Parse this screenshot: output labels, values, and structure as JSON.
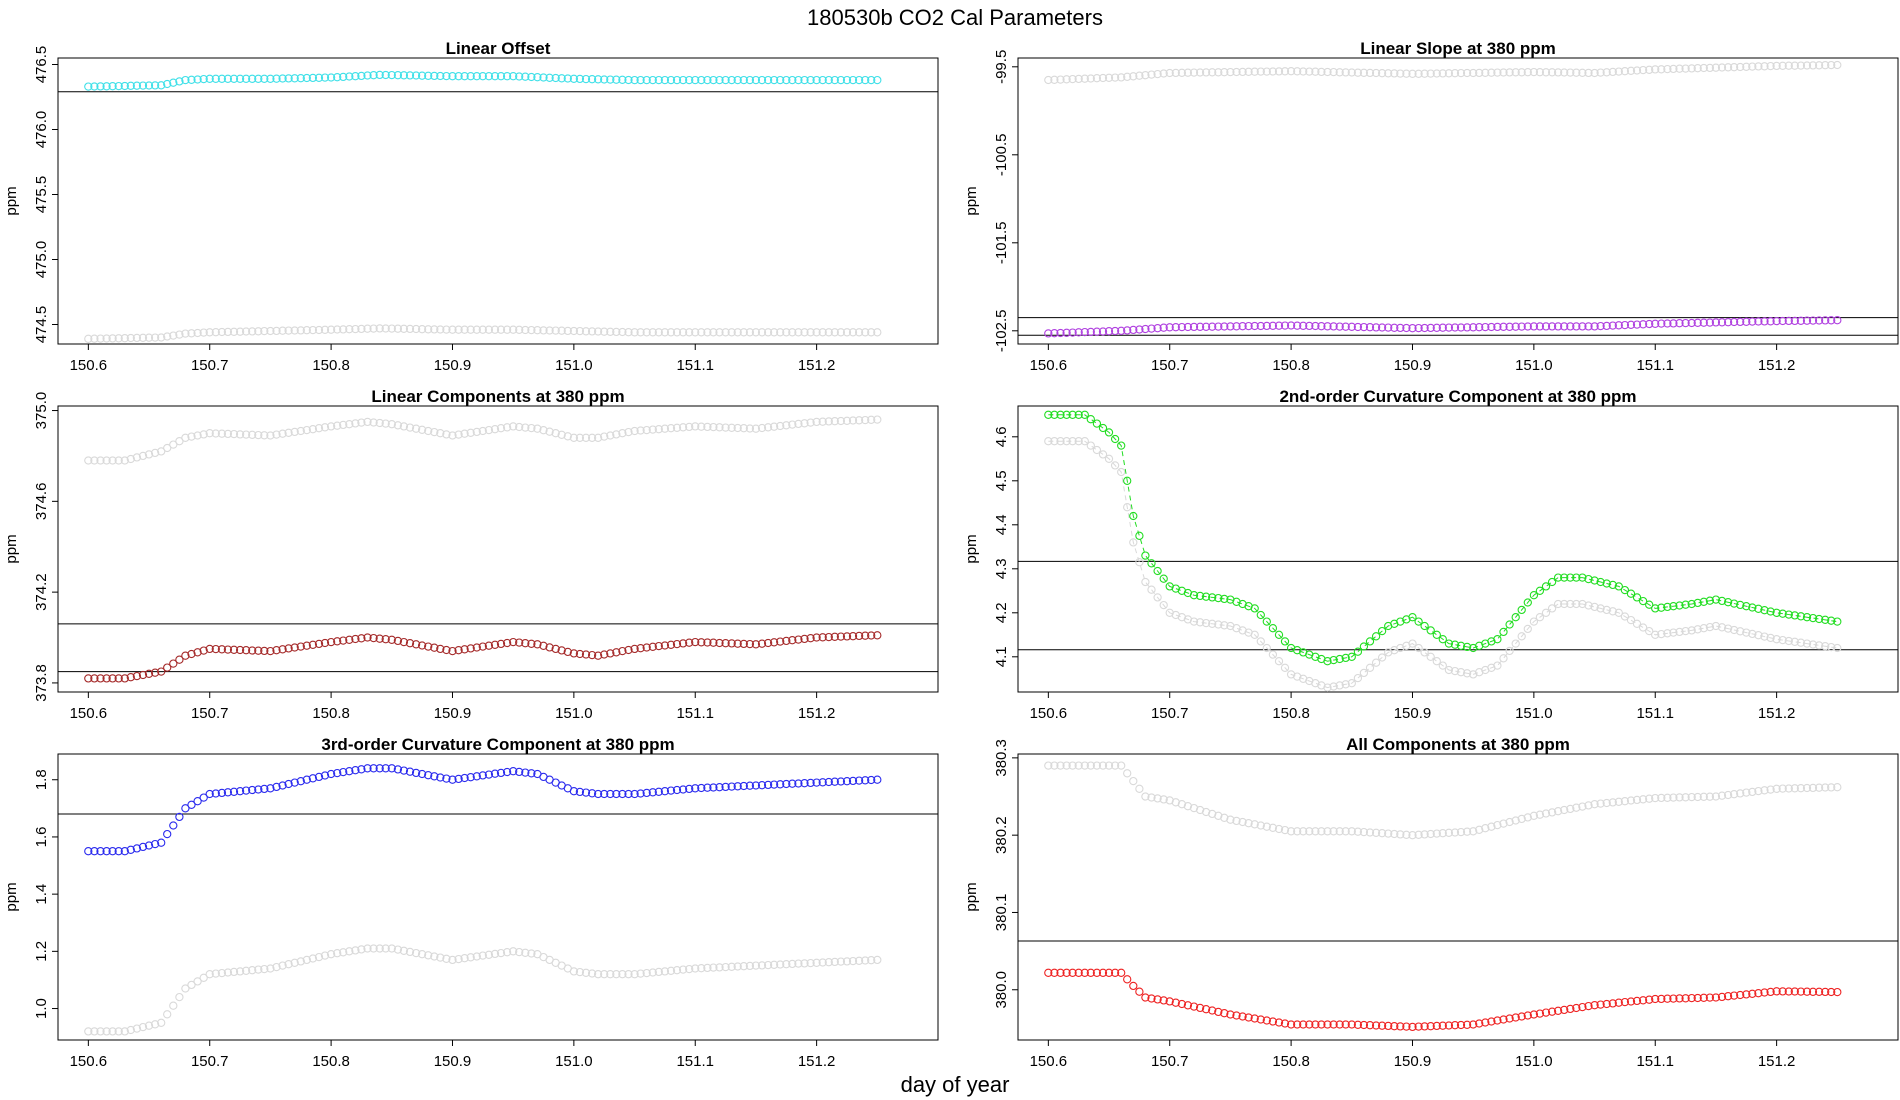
{
  "figure": {
    "title": "180530b   CO2 Cal Parameters",
    "xlabel": "day of year"
  },
  "chart_data": [
    {
      "type": "scatter",
      "title": "Linear Offset",
      "ylabel": "ppm",
      "xlim": [
        150.575,
        151.3
      ],
      "ylim": [
        474.35,
        476.55
      ],
      "xticks": [
        "150.6",
        "150.7",
        "150.8",
        "150.9",
        "151.0",
        "151.1",
        "151.2"
      ],
      "yticks": [
        "474.5",
        "475.0",
        "475.5",
        "476.0",
        "476.5"
      ],
      "hlines": [
        476.29
      ],
      "series": [
        {
          "color": "#3fe0e8",
          "points": [
            [
              150.6,
              476.33
            ],
            [
              150.66,
              476.34
            ],
            [
              150.68,
              476.38
            ],
            [
              150.7,
              476.39
            ],
            [
              150.75,
              476.39
            ],
            [
              150.8,
              476.4
            ],
            [
              150.84,
              476.42
            ],
            [
              150.9,
              476.41
            ],
            [
              150.95,
              476.41
            ],
            [
              151.0,
              476.39
            ],
            [
              151.05,
              476.38
            ],
            [
              151.1,
              476.38
            ],
            [
              151.2,
              476.38
            ],
            [
              151.25,
              476.38
            ]
          ]
        },
        {
          "color": "#d9d9d9",
          "points": [
            [
              150.6,
              474.39
            ],
            [
              150.66,
              474.4
            ],
            [
              150.68,
              474.43
            ],
            [
              150.7,
              474.44
            ],
            [
              150.75,
              474.45
            ],
            [
              150.8,
              474.46
            ],
            [
              150.84,
              474.47
            ],
            [
              150.9,
              474.46
            ],
            [
              150.95,
              474.46
            ],
            [
              151.0,
              474.45
            ],
            [
              151.05,
              474.44
            ],
            [
              151.1,
              474.44
            ],
            [
              151.2,
              474.44
            ],
            [
              151.25,
              474.44
            ]
          ]
        }
      ]
    },
    {
      "type": "scatter",
      "title": "Linear Slope at 380 ppm",
      "ylabel": "ppm",
      "xlim": [
        150.575,
        151.3
      ],
      "ylim": [
        -102.65,
        -99.4
      ],
      "xticks": [
        "150.6",
        "150.7",
        "150.8",
        "150.9",
        "151.0",
        "151.1",
        "151.2"
      ],
      "yticks": [
        "-99.5",
        "-100.5",
        "-101.5",
        "-102.5"
      ],
      "hlines": [
        -102.35,
        -102.55
      ],
      "series": [
        {
          "color": "#b040e0",
          "points": [
            [
              150.6,
              -102.53
            ],
            [
              150.66,
              -102.5
            ],
            [
              150.7,
              -102.46
            ],
            [
              150.8,
              -102.44
            ],
            [
              150.9,
              -102.47
            ],
            [
              151.0,
              -102.45
            ],
            [
              151.05,
              -102.45
            ],
            [
              151.1,
              -102.42
            ],
            [
              151.2,
              -102.39
            ],
            [
              151.25,
              -102.38
            ]
          ]
        },
        {
          "color": "#d9d9d9",
          "points": [
            [
              150.6,
              -99.65
            ],
            [
              150.66,
              -99.62
            ],
            [
              150.7,
              -99.57
            ],
            [
              150.8,
              -99.55
            ],
            [
              150.9,
              -99.58
            ],
            [
              151.0,
              -99.56
            ],
            [
              151.05,
              -99.57
            ],
            [
              151.1,
              -99.53
            ],
            [
              151.2,
              -99.49
            ],
            [
              151.25,
              -99.48
            ]
          ]
        }
      ]
    },
    {
      "type": "scatter",
      "title": "Linear Components at 380 ppm",
      "ylabel": "ppm",
      "xlim": [
        150.575,
        151.3
      ],
      "ylim": [
        373.76,
        375.02
      ],
      "xticks": [
        "150.6",
        "150.7",
        "150.8",
        "150.9",
        "151.0",
        "151.1",
        "151.2"
      ],
      "yticks": [
        "373.8",
        "374.2",
        "374.6",
        "375.0"
      ],
      "hlines": [
        374.06,
        373.85
      ],
      "series": [
        {
          "color": "#a52a2a",
          "points": [
            [
              150.6,
              373.82
            ],
            [
              150.63,
              373.82
            ],
            [
              150.66,
              373.85
            ],
            [
              150.68,
              373.92
            ],
            [
              150.7,
              373.95
            ],
            [
              150.75,
              373.94
            ],
            [
              150.8,
              373.98
            ],
            [
              150.83,
              374.0
            ],
            [
              150.85,
              373.99
            ],
            [
              150.9,
              373.94
            ],
            [
              150.95,
              373.98
            ],
            [
              150.97,
              373.97
            ],
            [
              151.0,
              373.93
            ],
            [
              151.02,
              373.92
            ],
            [
              151.05,
              373.95
            ],
            [
              151.1,
              373.98
            ],
            [
              151.15,
              373.97
            ],
            [
              151.2,
              374.0
            ],
            [
              151.25,
              374.01
            ]
          ]
        },
        {
          "color": "#d9d9d9",
          "points": [
            [
              150.6,
              374.78
            ],
            [
              150.63,
              374.78
            ],
            [
              150.66,
              374.82
            ],
            [
              150.68,
              374.88
            ],
            [
              150.7,
              374.9
            ],
            [
              150.75,
              374.89
            ],
            [
              150.8,
              374.93
            ],
            [
              150.83,
              374.95
            ],
            [
              150.85,
              374.94
            ],
            [
              150.9,
              374.89
            ],
            [
              150.95,
              374.93
            ],
            [
              150.97,
              374.92
            ],
            [
              151.0,
              374.88
            ],
            [
              151.02,
              374.88
            ],
            [
              151.05,
              374.91
            ],
            [
              151.1,
              374.93
            ],
            [
              151.15,
              374.92
            ],
            [
              151.2,
              374.95
            ],
            [
              151.25,
              374.96
            ]
          ]
        }
      ]
    },
    {
      "type": "scatter",
      "title": "2nd-order Curvature Component at 380 ppm",
      "ylabel": "ppm",
      "xlim": [
        150.575,
        151.3
      ],
      "ylim": [
        4.02,
        4.67
      ],
      "xticks": [
        "150.6",
        "150.7",
        "150.8",
        "150.9",
        "151.0",
        "151.1",
        "151.2"
      ],
      "yticks": [
        "4.1",
        "4.2",
        "4.3",
        "4.4",
        "4.5",
        "4.6"
      ],
      "hlines": [
        4.317,
        4.116
      ],
      "series": [
        {
          "color": "#22dd22",
          "connect": true,
          "points": [
            [
              150.6,
              4.65
            ],
            [
              150.63,
              4.65
            ],
            [
              150.65,
              4.61
            ],
            [
              150.66,
              4.58
            ],
            [
              150.67,
              4.42
            ],
            [
              150.68,
              4.33
            ],
            [
              150.7,
              4.26
            ],
            [
              150.72,
              4.24
            ],
            [
              150.75,
              4.23
            ],
            [
              150.77,
              4.21
            ],
            [
              150.8,
              4.12
            ],
            [
              150.83,
              4.09
            ],
            [
              150.85,
              4.1
            ],
            [
              150.88,
              4.17
            ],
            [
              150.9,
              4.19
            ],
            [
              150.93,
              4.13
            ],
            [
              150.95,
              4.12
            ],
            [
              150.97,
              4.14
            ],
            [
              151.0,
              4.24
            ],
            [
              151.02,
              4.28
            ],
            [
              151.04,
              4.28
            ],
            [
              151.07,
              4.26
            ],
            [
              151.1,
              4.21
            ],
            [
              151.13,
              4.22
            ],
            [
              151.15,
              4.23
            ],
            [
              151.2,
              4.2
            ],
            [
              151.25,
              4.18
            ]
          ]
        },
        {
          "color": "#d9d9d9",
          "connect": true,
          "points": [
            [
              150.6,
              4.59
            ],
            [
              150.63,
              4.59
            ],
            [
              150.65,
              4.55
            ],
            [
              150.66,
              4.52
            ],
            [
              150.67,
              4.36
            ],
            [
              150.68,
              4.27
            ],
            [
              150.7,
              4.2
            ],
            [
              150.72,
              4.18
            ],
            [
              150.75,
              4.17
            ],
            [
              150.77,
              4.15
            ],
            [
              150.8,
              4.06
            ],
            [
              150.83,
              4.03
            ],
            [
              150.85,
              4.04
            ],
            [
              150.88,
              4.11
            ],
            [
              150.9,
              4.13
            ],
            [
              150.93,
              4.07
            ],
            [
              150.95,
              4.06
            ],
            [
              150.97,
              4.08
            ],
            [
              151.0,
              4.18
            ],
            [
              151.02,
              4.22
            ],
            [
              151.04,
              4.22
            ],
            [
              151.07,
              4.2
            ],
            [
              151.1,
              4.15
            ],
            [
              151.13,
              4.16
            ],
            [
              151.15,
              4.17
            ],
            [
              151.2,
              4.14
            ],
            [
              151.25,
              4.12
            ]
          ]
        }
      ]
    },
    {
      "type": "scatter",
      "title": "3rd-order Curvature Component at 380 ppm",
      "ylabel": "ppm",
      "xlim": [
        150.575,
        151.3
      ],
      "ylim": [
        0.89,
        1.89
      ],
      "xticks": [
        "150.6",
        "150.7",
        "150.8",
        "150.9",
        "151.0",
        "151.1",
        "151.2"
      ],
      "yticks": [
        "1.0",
        "1.2",
        "1.4",
        "1.6",
        "1.8"
      ],
      "hlines": [
        1.68
      ],
      "series": [
        {
          "color": "#2a2aee",
          "points": [
            [
              150.6,
              1.55
            ],
            [
              150.63,
              1.55
            ],
            [
              150.66,
              1.58
            ],
            [
              150.67,
              1.64
            ],
            [
              150.68,
              1.7
            ],
            [
              150.7,
              1.75
            ],
            [
              150.75,
              1.77
            ],
            [
              150.8,
              1.82
            ],
            [
              150.83,
              1.84
            ],
            [
              150.85,
              1.84
            ],
            [
              150.9,
              1.8
            ],
            [
              150.95,
              1.83
            ],
            [
              150.97,
              1.82
            ],
            [
              151.0,
              1.76
            ],
            [
              151.02,
              1.75
            ],
            [
              151.05,
              1.75
            ],
            [
              151.1,
              1.77
            ],
            [
              151.15,
              1.78
            ],
            [
              151.2,
              1.79
            ],
            [
              151.25,
              1.8
            ]
          ]
        },
        {
          "color": "#d9d9d9",
          "points": [
            [
              150.6,
              0.92
            ],
            [
              150.63,
              0.92
            ],
            [
              150.66,
              0.95
            ],
            [
              150.67,
              1.01
            ],
            [
              150.68,
              1.07
            ],
            [
              150.7,
              1.12
            ],
            [
              150.75,
              1.14
            ],
            [
              150.8,
              1.19
            ],
            [
              150.83,
              1.21
            ],
            [
              150.85,
              1.21
            ],
            [
              150.9,
              1.17
            ],
            [
              150.95,
              1.2
            ],
            [
              150.97,
              1.19
            ],
            [
              151.0,
              1.13
            ],
            [
              151.02,
              1.12
            ],
            [
              151.05,
              1.12
            ],
            [
              151.1,
              1.14
            ],
            [
              151.15,
              1.15
            ],
            [
              151.2,
              1.16
            ],
            [
              151.25,
              1.17
            ]
          ]
        }
      ]
    },
    {
      "type": "scatter",
      "title": "All Components at 380 ppm",
      "ylabel": "ppm",
      "xlim": [
        150.575,
        151.3
      ],
      "ylim": [
        379.935,
        380.305
      ],
      "xticks": [
        "150.6",
        "150.7",
        "150.8",
        "150.9",
        "151.0",
        "151.1",
        "151.2"
      ],
      "yticks": [
        "380.0",
        "380.1",
        "380.2",
        "380.3"
      ],
      "hlines": [
        380.063
      ],
      "series": [
        {
          "color": "#ee2222",
          "points": [
            [
              150.6,
              380.022
            ],
            [
              150.66,
              380.022
            ],
            [
              150.67,
              380.005
            ],
            [
              150.68,
              379.99
            ],
            [
              150.7,
              379.985
            ],
            [
              150.75,
              379.968
            ],
            [
              150.8,
              379.955
            ],
            [
              150.85,
              379.955
            ],
            [
              150.9,
              379.952
            ],
            [
              150.95,
              379.955
            ],
            [
              151.0,
              379.968
            ],
            [
              151.05,
              379.98
            ],
            [
              151.1,
              379.988
            ],
            [
              151.15,
              379.99
            ],
            [
              151.2,
              379.998
            ],
            [
              151.25,
              379.997
            ]
          ]
        },
        {
          "color": "#d9d9d9",
          "points": [
            [
              150.6,
              380.29
            ],
            [
              150.66,
              380.29
            ],
            [
              150.67,
              380.27
            ],
            [
              150.68,
              380.25
            ],
            [
              150.7,
              380.245
            ],
            [
              150.75,
              380.22
            ],
            [
              150.8,
              380.205
            ],
            [
              150.85,
              380.205
            ],
            [
              150.9,
              380.2
            ],
            [
              150.95,
              380.205
            ],
            [
              151.0,
              380.225
            ],
            [
              151.05,
              380.24
            ],
            [
              151.1,
              380.248
            ],
            [
              151.15,
              380.25
            ],
            [
              151.2,
              380.26
            ],
            [
              151.25,
              380.262
            ]
          ]
        }
      ]
    }
  ]
}
